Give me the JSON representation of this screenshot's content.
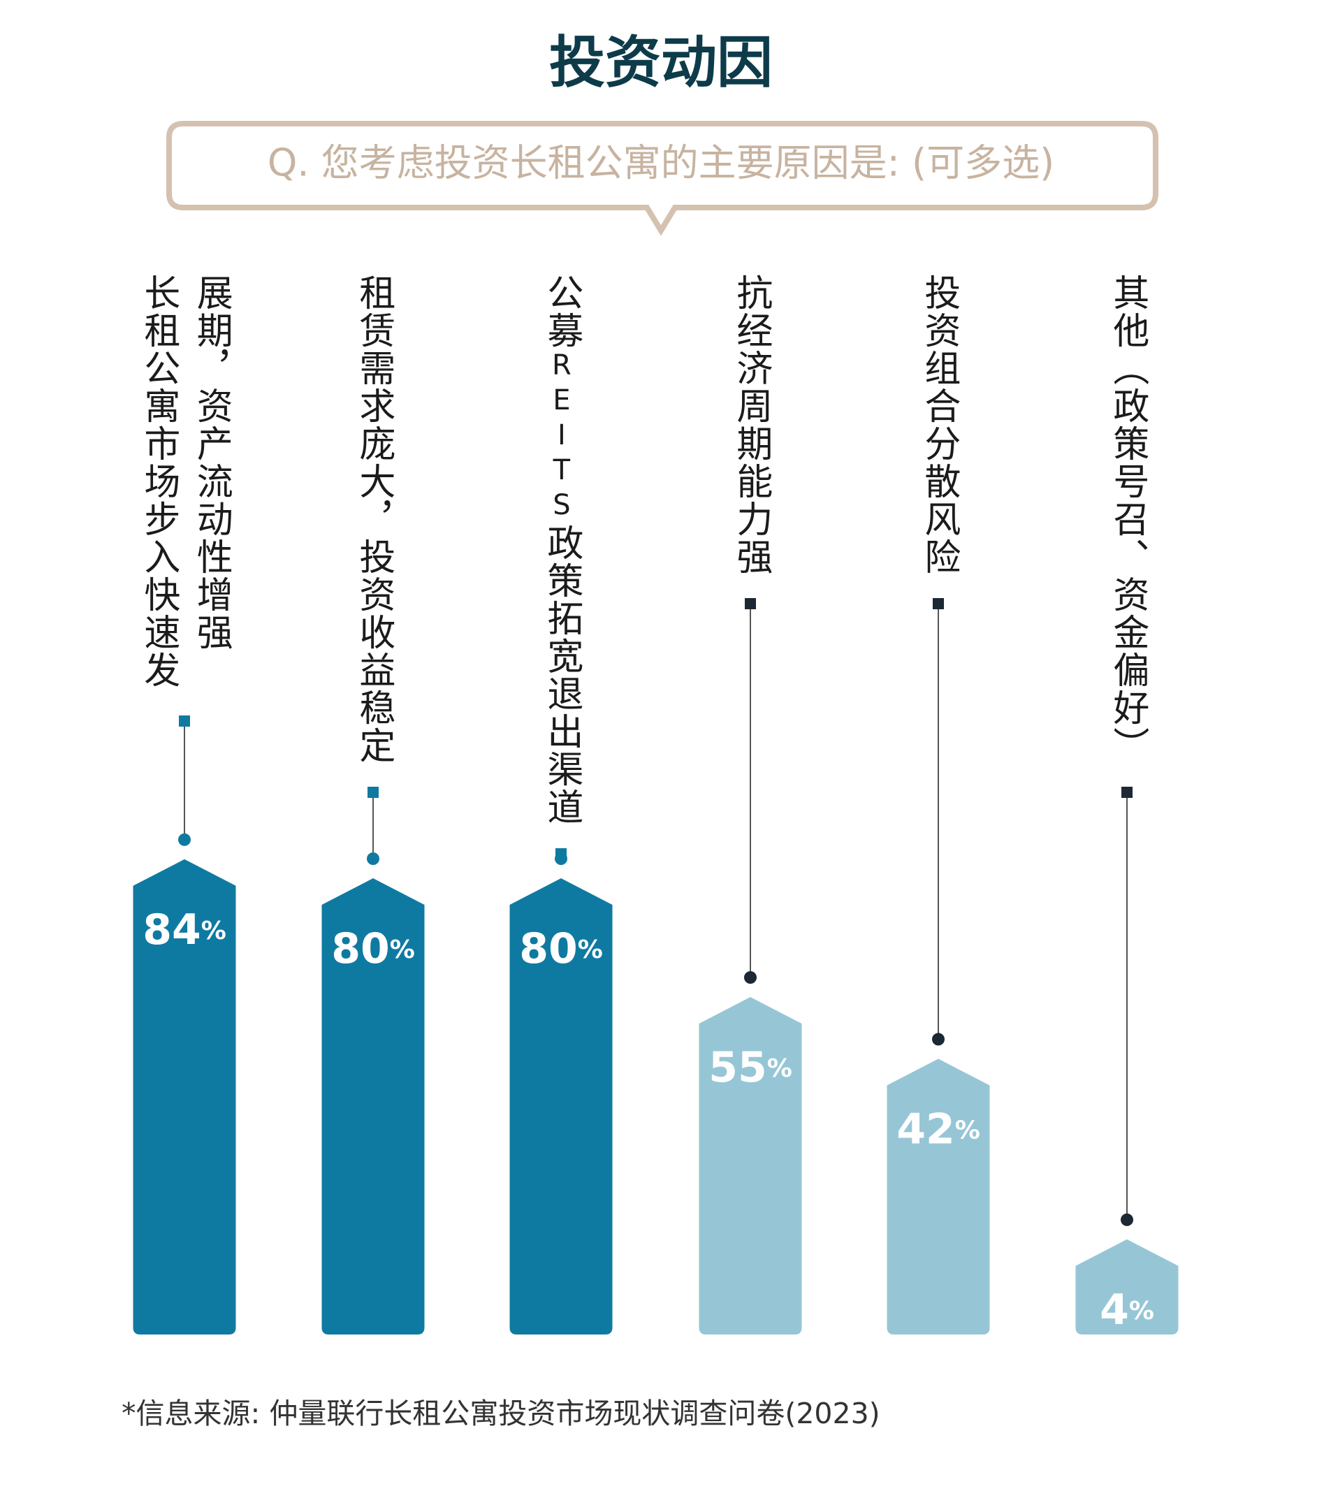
{
  "chart_data": {
    "type": "bar",
    "title": "投资动因",
    "subtitle": "Q. 您考虑投资长租公寓的主要原因是: (可多选)",
    "categories": [
      "长租公寓市场步入快速发展期，资产流动性增强",
      "租赁需求庞大，投资收益稳定",
      "公募REITS政策拓宽退出渠道",
      "抗经济周期能力强",
      "投资组合分散风险",
      "其他（政策号召、资金偏好）"
    ],
    "values": [
      84,
      80,
      80,
      55,
      42,
      4
    ],
    "value_labels": [
      "84%",
      "80%",
      "80%",
      "55%",
      "42%",
      "4%"
    ],
    "colors": [
      "#0f7aa1",
      "#0f7aa1",
      "#0f7aa1",
      "#96c6d6",
      "#96c6d6",
      "#96c6d6"
    ],
    "note": "*信息来源: 仲量联行长租公寓投资市场现状调查问卷(2023)"
  }
}
